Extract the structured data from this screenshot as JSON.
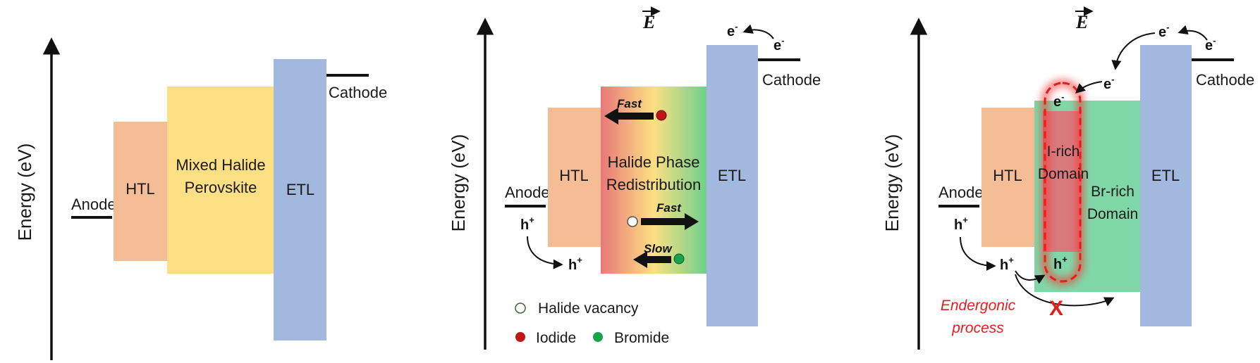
{
  "colors": {
    "htl": "#f5bd96",
    "perovskite": "#fde083",
    "etl": "#a2b8df",
    "br_rich": "#7fd7a8",
    "i_rich": "#d9797c",
    "iodide": "#c01515",
    "bromide": "#16a34a",
    "process_red": "#e0201a"
  },
  "panel1": {
    "y_axis_label": "Energy (eV)",
    "anode": "Anode",
    "htl": "HTL",
    "perovskite_line1": "Mixed Halide",
    "perovskite_line2": "Perovskite",
    "etl": "ETL",
    "cathode": "Cathode"
  },
  "panel2": {
    "y_axis_label": "Energy (eV)",
    "field": "E",
    "electron": "e",
    "electron_sup": "-",
    "cathode": "Cathode",
    "anode": "Anode",
    "hole": "h",
    "hole_sup": "+",
    "htl": "HTL",
    "redistribution_line1": "Halide Phase",
    "redistribution_line2": "Redistribution",
    "etl": "ETL",
    "fast_top": "Fast",
    "fast_mid": "Fast",
    "slow": "Slow",
    "legend": {
      "vacancy": "Halide vacancy",
      "iodide": "Iodide",
      "bromide": "Bromide"
    }
  },
  "panel3": {
    "y_axis_label": "Energy (eV)",
    "field": "E",
    "electron": "e",
    "electron_sup": "-",
    "cathode": "Cathode",
    "anode": "Anode",
    "hole": "h",
    "hole_sup": "+",
    "htl": "HTL",
    "i_rich_line1": "I-rich",
    "i_rich_line2": "Domain",
    "br_rich_line1": "Br-rich",
    "br_rich_line2": "Domain",
    "etl": "ETL",
    "blocked_mark": "X",
    "endergonic_line1": "Endergonic",
    "endergonic_line2": "process"
  }
}
